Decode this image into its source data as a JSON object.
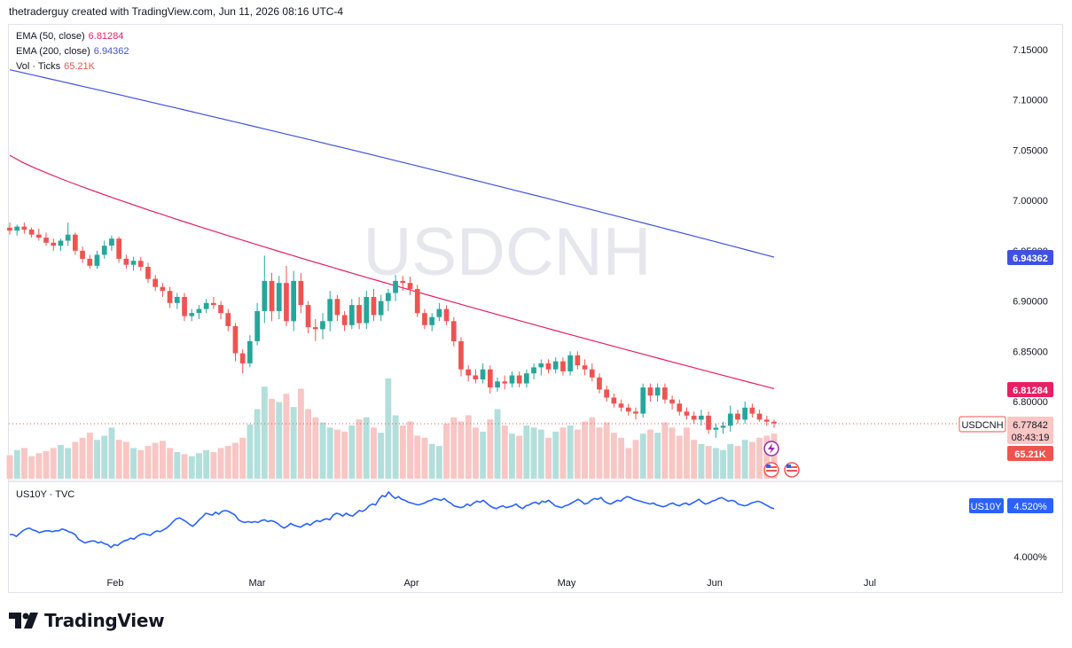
{
  "header": {
    "attribution": "thetraderguy created with TradingView.com, Jun 11, 2026 08:16 UTC-4"
  },
  "watermark": "USDCNH",
  "legend": {
    "ema50_label": "EMA (50, close)",
    "ema50_value": "6.81284",
    "ema200_label": "EMA (200, close)",
    "ema200_value": "6.94362",
    "vol_label": "Vol · Ticks",
    "vol_value": "65.21K",
    "us10y_label": "US10Y · TVC"
  },
  "badges": {
    "ema200": "6.94362",
    "ema50": "6.81284",
    "symbol": "USDCNH",
    "price": "6.77842",
    "countdown": "08:43:19",
    "volume": "65.21K",
    "us10y_symbol": "US10Y",
    "us10y_value": "4.520%"
  },
  "colors": {
    "up": "#26a69a",
    "down": "#ef5350",
    "ema50": "#e91e63",
    "ema200": "#3f51e0",
    "vol_up": "#b2dfdb",
    "vol_down": "#f8c6c4",
    "us10y": "#2962ff",
    "grid_text": "#131722"
  },
  "footer": {
    "logo_text": "TradingView"
  },
  "chart_data": [
    {
      "type": "candlestick",
      "symbol": "USDCNH",
      "y_ticks": [
        "7.15000",
        "7.10000",
        "7.05000",
        "7.00000",
        "6.95000",
        "6.90000",
        "6.85000",
        "6.80000"
      ],
      "ylim": [
        6.77,
        7.17
      ],
      "x_ticks": [
        "Feb",
        "Mar",
        "Apr",
        "May",
        "Jun",
        "Jul"
      ],
      "last_price": 6.77842,
      "ema50": {
        "start": 7.045,
        "end": 6.81284
      },
      "ema200": {
        "start": 7.13,
        "end": 6.94362
      },
      "ohlc": [
        [
          6.973,
          6.978,
          6.966,
          6.97
        ],
        [
          6.97,
          6.976,
          6.965,
          6.974
        ],
        [
          6.974,
          6.978,
          6.967,
          6.971
        ],
        [
          6.971,
          6.973,
          6.963,
          6.966
        ],
        [
          6.966,
          6.972,
          6.96,
          6.963
        ],
        [
          6.963,
          6.968,
          6.955,
          6.958
        ],
        [
          6.958,
          6.962,
          6.95,
          6.955
        ],
        [
          6.955,
          6.962,
          6.95,
          6.96
        ],
        [
          6.96,
          6.978,
          6.955,
          6.966
        ],
        [
          6.966,
          6.968,
          6.946,
          6.95
        ],
        [
          6.95,
          6.954,
          6.938,
          6.942
        ],
        [
          6.942,
          6.946,
          6.932,
          6.935
        ],
        [
          6.935,
          6.95,
          6.932,
          6.946
        ],
        [
          6.946,
          6.96,
          6.942,
          6.955
        ],
        [
          6.955,
          6.965,
          6.95,
          6.962
        ],
        [
          6.962,
          6.964,
          6.938,
          6.942
        ],
        [
          6.942,
          6.946,
          6.932,
          6.936
        ],
        [
          6.936,
          6.944,
          6.93,
          6.94
        ],
        [
          6.94,
          6.944,
          6.93,
          6.934
        ],
        [
          6.934,
          6.938,
          6.918,
          6.922
        ],
        [
          6.922,
          6.926,
          6.91,
          6.914
        ],
        [
          6.914,
          6.918,
          6.904,
          6.91
        ],
        [
          6.91,
          6.914,
          6.893,
          6.898
        ],
        [
          6.898,
          6.908,
          6.892,
          6.904
        ],
        [
          6.904,
          6.908,
          6.88,
          6.885
        ],
        [
          6.885,
          6.892,
          6.88,
          6.888
        ],
        [
          6.888,
          6.896,
          6.882,
          6.892
        ],
        [
          6.892,
          6.902,
          6.888,
          6.898
        ],
        [
          6.898,
          6.904,
          6.892,
          6.896
        ],
        [
          6.896,
          6.9,
          6.882,
          6.888
        ],
        [
          6.888,
          6.892,
          6.87,
          6.875
        ],
        [
          6.875,
          6.878,
          6.84,
          6.848
        ],
        [
          6.848,
          6.852,
          6.828,
          6.838
        ],
        [
          6.838,
          6.866,
          6.834,
          6.86
        ],
        [
          6.86,
          6.898,
          6.856,
          6.89
        ],
        [
          6.89,
          6.945,
          6.878,
          6.92
        ],
        [
          6.92,
          6.928,
          6.88,
          6.89
        ],
        [
          6.89,
          6.925,
          6.882,
          6.918
        ],
        [
          6.918,
          6.935,
          6.875,
          6.88
        ],
        [
          6.88,
          6.93,
          6.87,
          6.92
        ],
        [
          6.92,
          6.928,
          6.888,
          6.896
        ],
        [
          6.896,
          6.9,
          6.868,
          6.874
        ],
        [
          6.874,
          6.882,
          6.86,
          6.872
        ],
        [
          6.872,
          6.888,
          6.862,
          6.88
        ],
        [
          6.88,
          6.91,
          6.87,
          6.902
        ],
        [
          6.902,
          6.906,
          6.88,
          6.886
        ],
        [
          6.886,
          6.89,
          6.87,
          6.876
        ],
        [
          6.876,
          6.902,
          6.872,
          6.896
        ],
        [
          6.896,
          6.904,
          6.872,
          6.878
        ],
        [
          6.878,
          6.91,
          6.872,
          6.904
        ],
        [
          6.904,
          6.912,
          6.88,
          6.886
        ],
        [
          6.886,
          6.906,
          6.88,
          6.9
        ],
        [
          6.9,
          6.912,
          6.89,
          6.908
        ],
        [
          6.908,
          6.926,
          6.9,
          6.92
        ],
        [
          6.92,
          6.925,
          6.91,
          6.918
        ],
        [
          6.918,
          6.924,
          6.906,
          6.912
        ],
        [
          6.912,
          6.916,
          6.884,
          6.888
        ],
        [
          6.888,
          6.892,
          6.872,
          6.876
        ],
        [
          6.876,
          6.888,
          6.87,
          6.884
        ],
        [
          6.884,
          6.898,
          6.88,
          6.892
        ],
        [
          6.892,
          6.896,
          6.876,
          6.88
        ],
        [
          6.88,
          6.884,
          6.855,
          6.86
        ],
        [
          6.86,
          6.864,
          6.825,
          6.832
        ],
        [
          6.832,
          6.836,
          6.82,
          6.826
        ],
        [
          6.826,
          6.832,
          6.818,
          6.822
        ],
        [
          6.822,
          6.838,
          6.818,
          6.832
        ],
        [
          6.832,
          6.836,
          6.808,
          6.814
        ],
        [
          6.814,
          6.824,
          6.81,
          6.82
        ],
        [
          6.82,
          6.826,
          6.812,
          6.818
        ],
        [
          6.818,
          6.83,
          6.814,
          6.826
        ],
        [
          6.826,
          6.83,
          6.814,
          6.818
        ],
        [
          6.818,
          6.832,
          6.814,
          6.828
        ],
        [
          6.828,
          6.838,
          6.822,
          6.834
        ],
        [
          6.834,
          6.842,
          6.826,
          6.838
        ],
        [
          6.838,
          6.842,
          6.828,
          6.832
        ],
        [
          6.832,
          6.844,
          6.828,
          6.84
        ],
        [
          6.84,
          6.844,
          6.826,
          6.83
        ],
        [
          6.83,
          6.85,
          6.826,
          6.846
        ],
        [
          6.846,
          6.85,
          6.832,
          6.836
        ],
        [
          6.836,
          6.842,
          6.826,
          6.832
        ],
        [
          6.832,
          6.838,
          6.82,
          6.824
        ],
        [
          6.824,
          6.828,
          6.808,
          6.812
        ],
        [
          6.812,
          6.816,
          6.8,
          6.804
        ],
        [
          6.804,
          6.808,
          6.794,
          6.798
        ],
        [
          6.798,
          6.802,
          6.79,
          6.794
        ],
        [
          6.794,
          6.798,
          6.786,
          6.79
        ],
        [
          6.79,
          6.794,
          6.782,
          6.788
        ],
        [
          6.788,
          6.818,
          6.784,
          6.814
        ],
        [
          6.814,
          6.818,
          6.8,
          6.806
        ],
        [
          6.806,
          6.818,
          6.8,
          6.814
        ],
        [
          6.814,
          6.818,
          6.798,
          6.802
        ],
        [
          6.802,
          6.806,
          6.792,
          6.798
        ],
        [
          6.798,
          6.802,
          6.786,
          6.79
        ],
        [
          6.79,
          6.794,
          6.782,
          6.786
        ],
        [
          6.786,
          6.79,
          6.778,
          6.782
        ],
        [
          6.782,
          6.792,
          6.776,
          6.786
        ],
        [
          6.786,
          6.79,
          6.768,
          6.772
        ],
        [
          6.772,
          6.778,
          6.764,
          6.774
        ],
        [
          6.774,
          6.78,
          6.768,
          6.776
        ],
        [
          6.776,
          6.796,
          6.77,
          6.788
        ],
        [
          6.788,
          6.792,
          6.778,
          6.782
        ],
        [
          6.782,
          6.8,
          6.778,
          6.794
        ],
        [
          6.794,
          6.798,
          6.784,
          6.788
        ],
        [
          6.788,
          6.792,
          6.78,
          6.782
        ],
        [
          6.782,
          6.786,
          6.776,
          6.78
        ],
        [
          6.78,
          6.782,
          6.774,
          6.77842
        ]
      ],
      "volume": [
        23,
        28,
        30,
        22,
        25,
        27,
        30,
        33,
        30,
        36,
        40,
        45,
        38,
        42,
        50,
        38,
        36,
        30,
        28,
        32,
        35,
        37,
        30,
        26,
        24,
        22,
        25,
        28,
        26,
        30,
        32,
        35,
        40,
        53,
        68,
        90,
        78,
        75,
        83,
        70,
        88,
        68,
        60,
        55,
        50,
        48,
        46,
        52,
        58,
        60,
        50,
        45,
        98,
        62,
        52,
        56,
        42,
        40,
        34,
        32,
        54,
        60,
        56,
        62,
        50,
        46,
        58,
        68,
        52,
        44,
        42,
        52,
        50,
        48,
        40,
        46,
        50,
        52,
        48,
        56,
        60,
        50,
        55,
        45,
        40,
        30,
        38,
        44,
        48,
        45,
        55,
        50,
        42,
        50,
        38,
        34,
        32,
        30,
        28,
        34,
        32,
        38,
        36,
        40,
        42,
        44
      ],
      "volume_ylim": [
        0,
        130
      ],
      "volume_last": "65.21K"
    },
    {
      "type": "line",
      "symbol": "US10Y",
      "y_ticks": [
        "4.000%"
      ],
      "ylim": [
        3.96,
        4.7
      ],
      "last_value": "4.520%",
      "values": [
        4.24,
        4.24,
        4.22,
        4.25,
        4.28,
        4.3,
        4.31,
        4.29,
        4.28,
        4.26,
        4.27,
        4.28,
        4.28,
        4.27,
        4.28,
        4.28,
        4.3,
        4.29,
        4.27,
        4.26,
        4.24,
        4.19,
        4.17,
        4.15,
        4.16,
        4.17,
        4.17,
        4.15,
        4.16,
        4.14,
        4.13,
        4.1,
        4.13,
        4.12,
        4.15,
        4.17,
        4.18,
        4.2,
        4.19,
        4.22,
        4.24,
        4.25,
        4.24,
        4.23,
        4.26,
        4.28,
        4.27,
        4.29,
        4.31,
        4.34,
        4.38,
        4.41,
        4.42,
        4.4,
        4.38,
        4.35,
        4.33,
        4.36,
        4.4,
        4.43,
        4.47,
        4.46,
        4.45,
        4.48,
        4.46,
        4.49,
        4.5,
        4.49,
        4.47,
        4.45,
        4.4,
        4.38,
        4.37,
        4.38,
        4.37,
        4.38,
        4.37,
        4.39,
        4.4,
        4.38,
        4.39,
        4.38,
        4.36,
        4.33,
        4.31,
        4.33,
        4.36,
        4.34,
        4.33,
        4.32,
        4.34,
        4.36,
        4.34,
        4.37,
        4.39,
        4.38,
        4.4,
        4.41,
        4.4,
        4.45,
        4.47,
        4.46,
        4.44,
        4.47,
        4.45,
        4.44,
        4.47,
        4.5,
        4.49,
        4.51,
        4.55,
        4.57,
        4.56,
        4.62,
        4.66,
        4.65,
        4.7,
        4.66,
        4.63,
        4.65,
        4.62,
        4.61,
        4.59,
        4.58,
        4.57,
        4.56,
        4.57,
        4.58,
        4.6,
        4.61,
        4.63,
        4.62,
        4.61,
        4.63,
        4.6,
        4.58,
        4.55,
        4.54,
        4.53,
        4.54,
        4.57,
        4.55,
        4.58,
        4.6,
        4.59,
        4.61,
        4.58,
        4.55,
        4.53,
        4.52,
        4.54,
        4.55,
        4.53,
        4.54,
        4.55,
        4.57,
        4.54,
        4.52,
        4.55,
        4.56,
        4.58,
        4.59,
        4.57,
        4.6,
        4.59,
        4.61,
        4.58,
        4.55,
        4.54,
        4.53,
        4.55,
        4.56,
        4.58,
        4.6,
        4.62,
        4.6,
        4.57,
        4.58,
        4.61,
        4.63,
        4.62,
        4.64,
        4.6,
        4.58,
        4.57,
        4.59,
        4.61,
        4.6,
        4.63,
        4.65,
        4.64,
        4.62,
        4.61,
        4.6,
        4.59,
        4.58,
        4.57,
        4.58,
        4.56,
        4.55,
        4.54,
        4.55,
        4.57,
        4.58,
        4.56,
        4.55,
        4.57,
        4.58,
        4.56,
        4.58,
        4.6,
        4.62,
        4.59,
        4.57,
        4.58,
        4.6,
        4.61,
        4.63,
        4.64,
        4.62,
        4.6,
        4.61,
        4.6,
        4.57,
        4.56,
        4.55,
        4.56,
        4.58,
        4.59,
        4.6,
        4.59,
        4.57,
        4.55,
        4.53,
        4.52
      ]
    }
  ]
}
